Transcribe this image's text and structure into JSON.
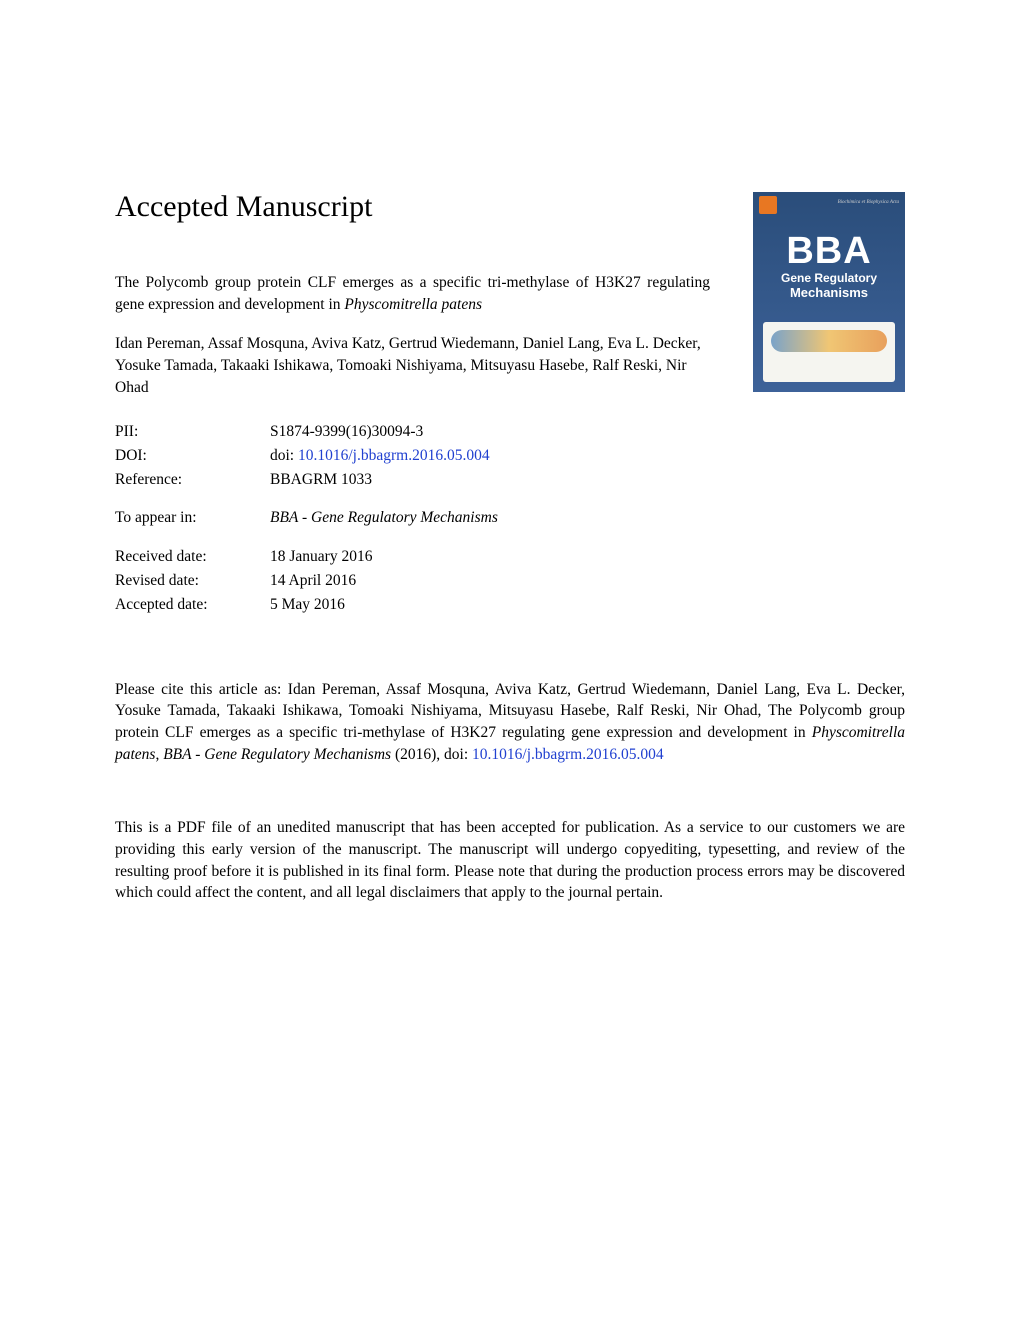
{
  "heading": "Accepted Manuscript",
  "cover": {
    "bba": "BBA",
    "sub1": "Gene Regulatory",
    "sub2": "Mechanisms",
    "toptxt": "Biochimica et Biophysica Acta",
    "bg_gradient_top": "#2a4d7a",
    "bg_gradient_bottom": "#3d6299",
    "accent_color": "#e87722"
  },
  "title_prefix": "The Polycomb group protein CLF emerges as a specific tri-methylase of H3K27 regulating gene expression and development in ",
  "title_italic": "Physcomitrella patens",
  "authors": "Idan Pereman, Assaf Mosquna, Aviva Katz, Gertrud Wiedemann, Daniel Lang, Eva L. Decker, Yosuke Tamada, Takaaki Ishikawa, Tomoaki Nishiyama, Mitsuyasu Hasebe, Ralf Reski, Nir Ohad",
  "meta": {
    "pii_label": "PII:",
    "pii_value": "S1874-9399(16)30094-3",
    "doi_label": "DOI:",
    "doi_prefix": "doi: ",
    "doi_link": "10.1016/j.bbagrm.2016.05.004",
    "ref_label": "Reference:",
    "ref_value": "BBAGRM 1033",
    "appear_label": "To appear in:",
    "appear_value": "BBA - Gene Regulatory Mechanisms",
    "recv_label": "Received date:",
    "recv_value": "18 January 2016",
    "rev_label": "Revised date:",
    "rev_value": "14 April 2016",
    "acc_label": "Accepted date:",
    "acc_value": "5 May 2016"
  },
  "citation": {
    "prefix": "Please cite this article as: Idan Pereman, Assaf Mosquna, Aviva Katz, Gertrud Wiedemann, Daniel Lang, Eva L. Decker, Yosuke Tamada, Takaaki Ishikawa, Tomoaki Nishiyama, Mitsuyasu Hasebe, Ralf Reski, Nir Ohad, The Polycomb group protein CLF emerges as a specific tri-methylase of H3K27 regulating gene expression and development in ",
    "italic1": "Physcomitrella patens",
    "mid": ", ",
    "italic2": "BBA - Gene Regulatory Mechanisms",
    "suffix": " (2016),   doi: ",
    "link": "10.1016/j.bbagrm.2016.05.004"
  },
  "disclaimer": "This is a PDF file of an unedited manuscript that has been accepted for publication. As a service to our customers we are providing this early version of the manuscript. The manuscript will undergo copyediting, typesetting, and review of the resulting proof before it is published in its final form. Please note that during the production process errors may be discovered which could affect the content, and all legal disclaimers that apply to the journal pertain.",
  "colors": {
    "text": "#000000",
    "link": "#2040d0",
    "background": "#ffffff"
  },
  "fontsize_body": 15.5,
  "fontsize_heading": 30
}
